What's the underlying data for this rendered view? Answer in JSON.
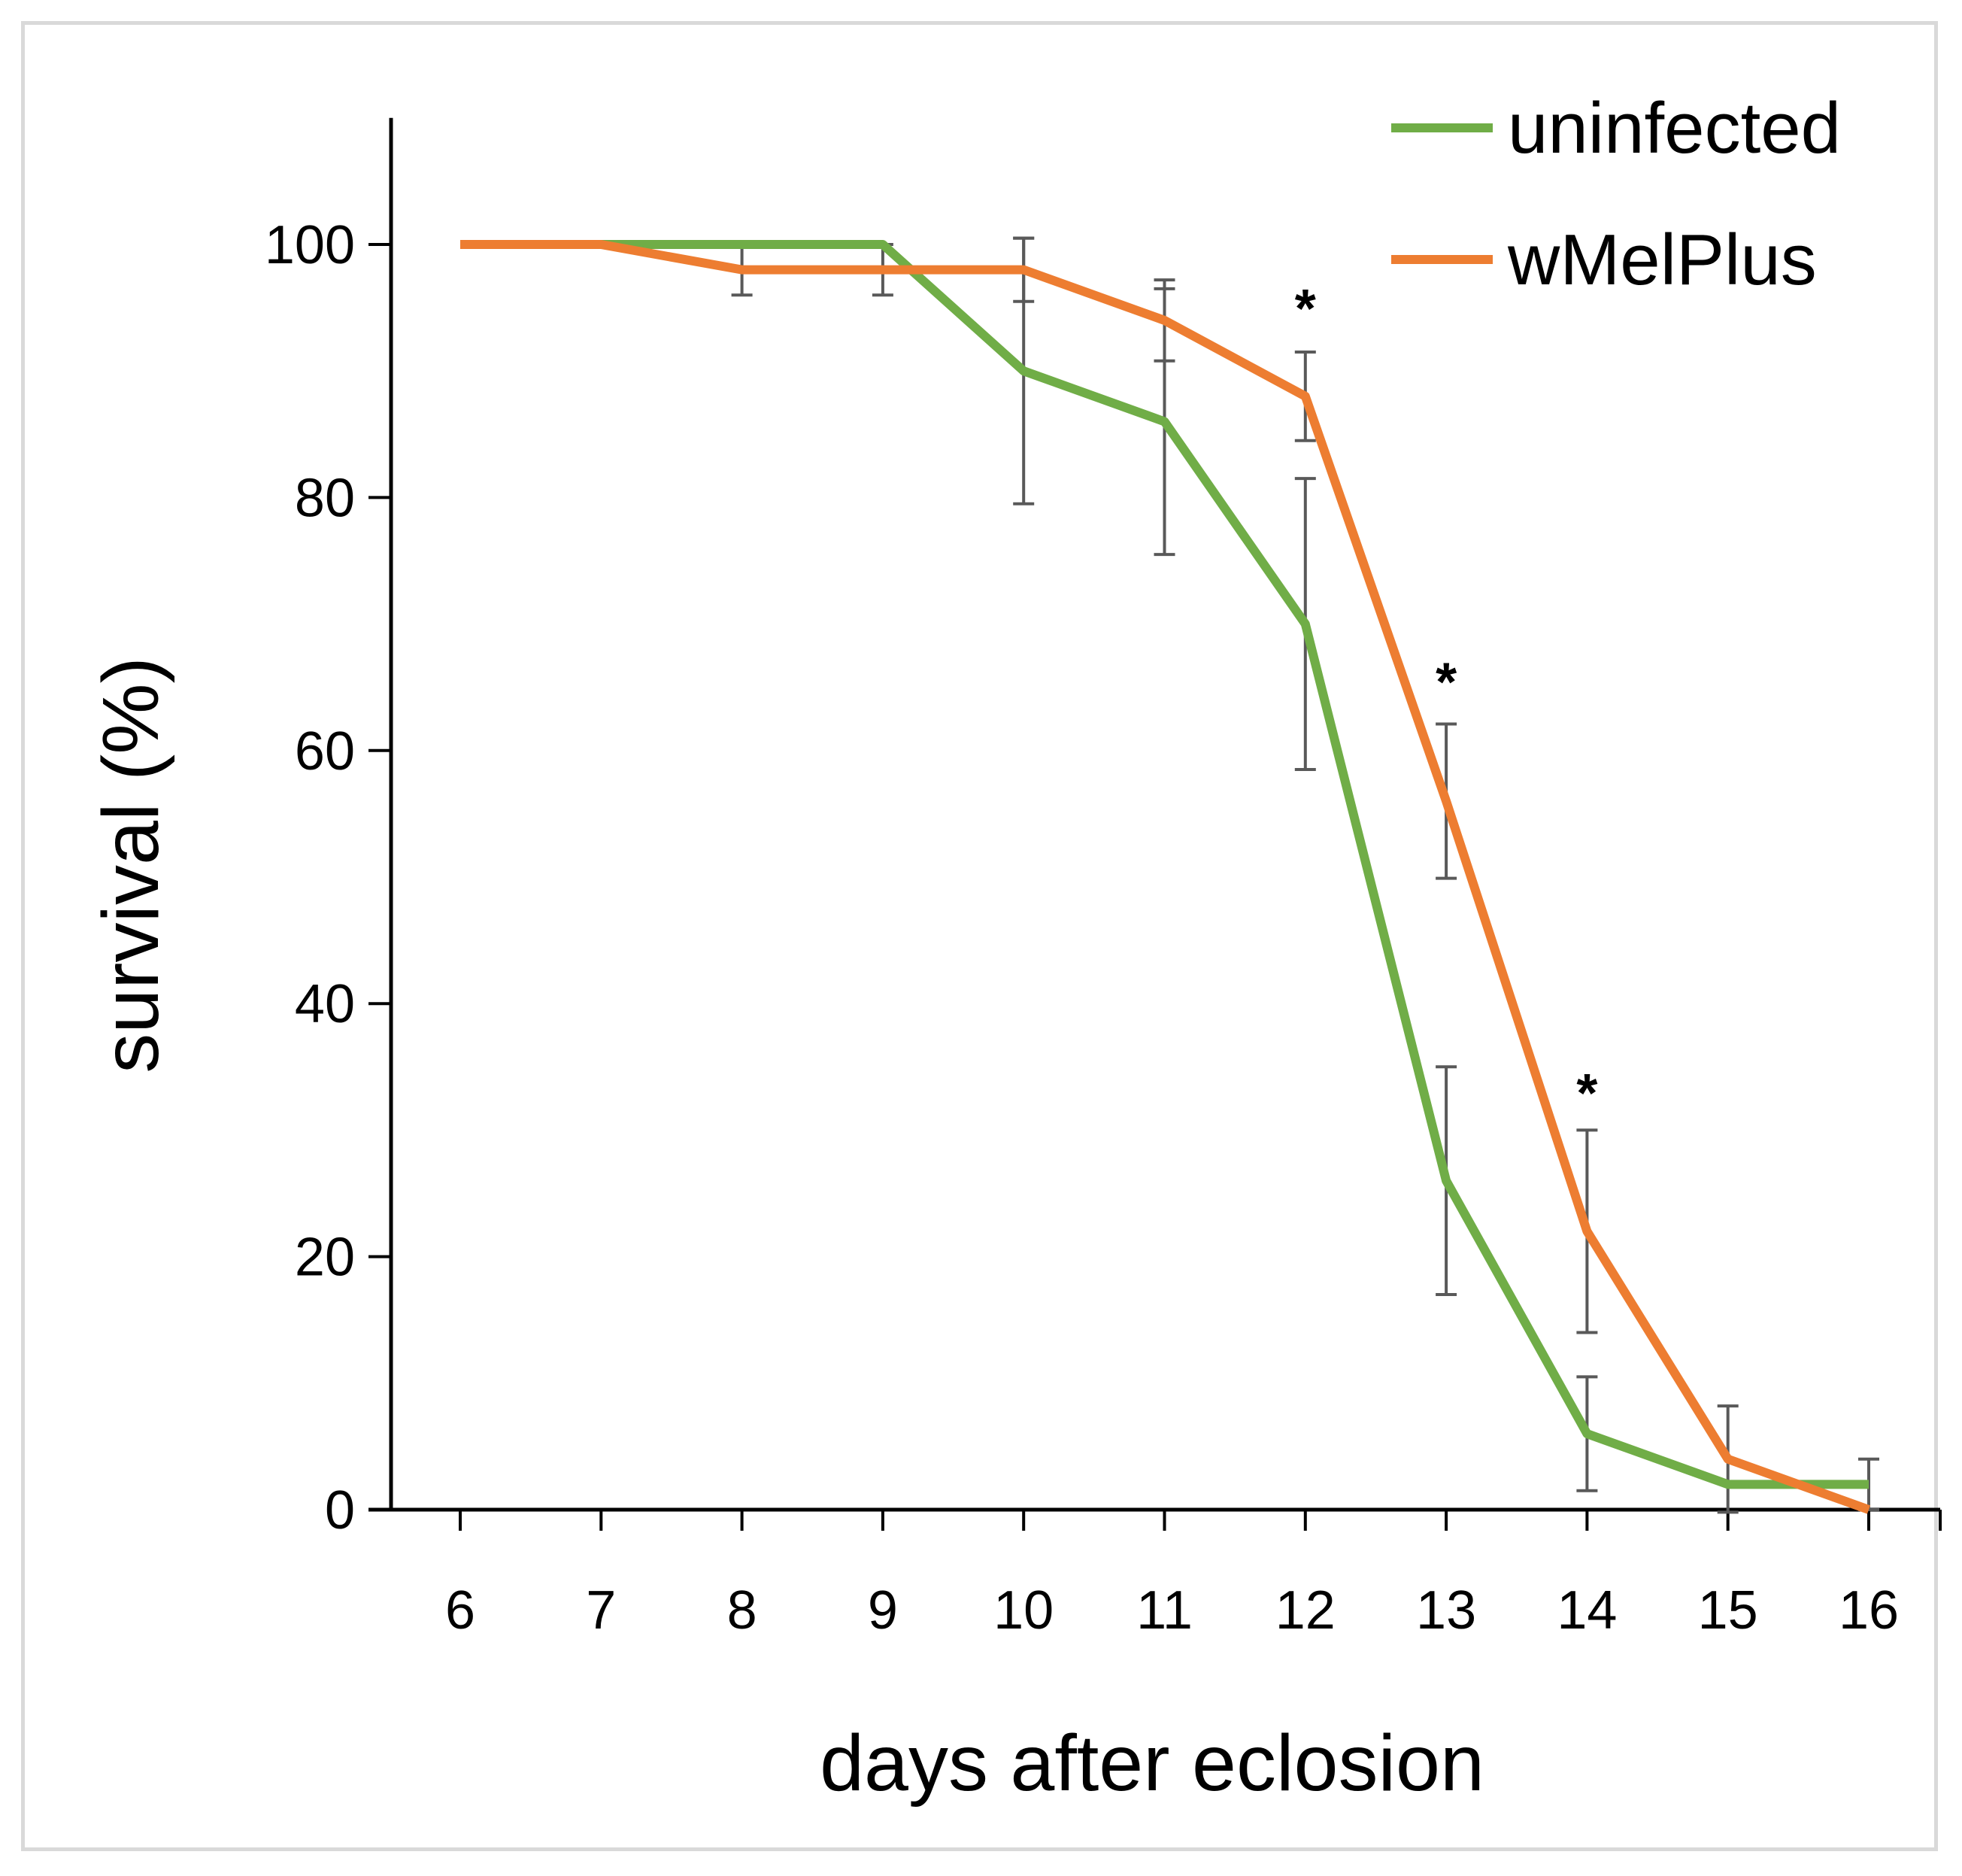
{
  "chart_data": {
    "type": "line",
    "title": "",
    "xlabel": "days after eclosion",
    "ylabel": "survival (%)",
    "x": [
      6,
      7,
      8,
      9,
      10,
      11,
      12,
      13,
      14,
      15,
      16
    ],
    "x_tick_labels": [
      "6",
      "7",
      "8",
      "9",
      "10",
      "11",
      "12",
      "13",
      "14",
      "15",
      "16"
    ],
    "y_ticks": [
      0,
      20,
      40,
      60,
      80,
      100
    ],
    "y_tick_labels": [
      "0",
      "20",
      "40",
      "60",
      "80",
      "100"
    ],
    "ylim": [
      0,
      110
    ],
    "xlim": [
      5.5,
      16.5
    ],
    "grid": false,
    "legend_position": "top-right",
    "series": [
      {
        "name": "uninfected",
        "color": "#70ad47",
        "values": [
          100,
          100,
          100,
          100,
          90,
          86,
          70,
          26,
          6,
          2,
          2
        ],
        "error": [
          0,
          0,
          0,
          0,
          10.5,
          10.5,
          11.5,
          9,
          4.5,
          0,
          2
        ]
      },
      {
        "name": "wMelPlus",
        "color": "#ed7d31",
        "values": [
          100,
          100,
          98,
          98,
          98,
          94,
          88,
          56,
          22,
          4,
          0
        ],
        "error": [
          0,
          0,
          2,
          2,
          2.5,
          3.2,
          3.5,
          6.1,
          8,
          4.2,
          0
        ]
      }
    ],
    "annotations": [
      {
        "x": 12,
        "y": 95,
        "text": "*"
      },
      {
        "x": 13,
        "y": 65.5,
        "text": "*"
      },
      {
        "x": 14,
        "y": 33,
        "text": "*"
      }
    ]
  }
}
